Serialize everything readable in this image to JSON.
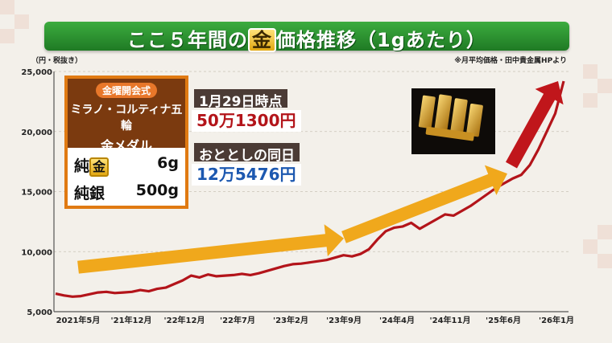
{
  "title": {
    "pre": "ここ５年間の",
    "gold": "金",
    "post": "価格推移（1gあたり）"
  },
  "unit_note": "（円・税抜き）",
  "source_note": "※月平均価格・田中貴金属HPより",
  "info_box": {
    "badge": "金曜開会式",
    "line2": "ミラノ・コルティナ五輪",
    "line3": "金メダル",
    "rows": [
      {
        "prefix": "純",
        "gold_char": "金",
        "value": "6g"
      },
      {
        "label": "純銀",
        "value": "500g"
      }
    ]
  },
  "callout_current": {
    "label": "1月29日時点",
    "value": "50万1300円",
    "color": "#b3141a"
  },
  "callout_past": {
    "label": "おととしの同日",
    "value": "12万5476円",
    "color": "#1c58b0"
  },
  "photo": {
    "name": "gold-bars-icon"
  },
  "colors": {
    "line": "#b3141a",
    "arrow_orange": "#f0a81c",
    "arrow_red": "#c0161b",
    "title_green": "#2d9a33"
  },
  "chart_data": {
    "type": "line",
    "x_tick_labels": [
      "2021年5月",
      "'21年12月",
      "'22年12月",
      "'22年7月",
      "'23年2月",
      "'23年9月",
      "'24年4月",
      "'24年11月",
      "'25年6月",
      "'26年1月"
    ],
    "y_tick_labels": [
      "5,000",
      "10,000",
      "15,000",
      "20,000",
      "25,000"
    ],
    "ylim": [
      5000,
      25000
    ],
    "grid": true,
    "series": [
      {
        "values": [
          6500,
          6350,
          6250,
          6300,
          6450,
          6600,
          6650,
          6550,
          6600,
          6650,
          6800,
          6700,
          6900,
          7000,
          7300,
          7600,
          8000,
          7850,
          8100,
          7950,
          8000,
          8050,
          8150,
          8050,
          8200,
          8400,
          8600,
          8800,
          8950,
          9000,
          9100,
          9200,
          9300,
          9500,
          9700,
          9600,
          9800,
          10200,
          11000,
          11700,
          12000,
          12100,
          12400,
          11900,
          12300,
          12700,
          13100,
          13000,
          13400,
          13800,
          14300,
          14800,
          15300,
          15700,
          16100,
          16400,
          17200,
          18500,
          20000,
          21500,
          24200
        ]
      }
    ],
    "arrows": [
      {
        "from": [
          "2021-05",
          8700
        ],
        "to": [
          "2023-09",
          11100
        ]
      },
      {
        "from": [
          "2023-09",
          11200
        ],
        "to": [
          "2025-06",
          16500
        ]
      },
      {
        "from": [
          "2025-06",
          17200
        ],
        "to": [
          "2026-01",
          24200
        ]
      }
    ]
  }
}
